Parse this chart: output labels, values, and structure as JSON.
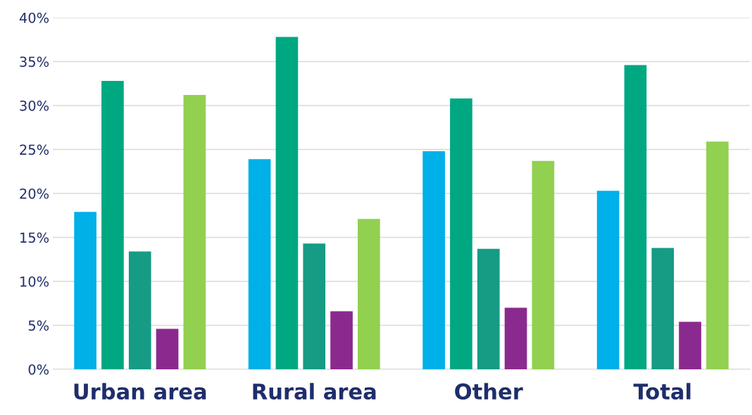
{
  "chart_data": {
    "type": "bar",
    "categories": [
      "Urban area",
      "Rural area",
      "Other",
      "Total"
    ],
    "series": [
      {
        "color": "#00b0e8",
        "values": [
          17.9,
          23.9,
          24.8,
          20.3
        ]
      },
      {
        "color": "#00a882",
        "values": [
          32.8,
          37.8,
          30.8,
          34.6
        ]
      },
      {
        "color": "#169b85",
        "values": [
          13.4,
          14.3,
          13.7,
          13.8
        ]
      },
      {
        "color": "#8b2a8e",
        "values": [
          4.6,
          6.6,
          7.0,
          5.4
        ]
      },
      {
        "color": "#92d050",
        "values": [
          31.2,
          17.1,
          23.7,
          25.9
        ]
      }
    ],
    "ylim": [
      0,
      40
    ],
    "yticks": [
      {
        "value": 0,
        "label": "0%"
      },
      {
        "value": 5,
        "label": "5%"
      },
      {
        "value": 10,
        "label": "10%"
      },
      {
        "value": 15,
        "label": "15%"
      },
      {
        "value": 20,
        "label": "20%"
      },
      {
        "value": 25,
        "label": "25%"
      },
      {
        "value": 30,
        "label": "30%"
      },
      {
        "value": 35,
        "label": "35%"
      },
      {
        "value": 40,
        "label": "40%"
      }
    ],
    "grid": "y"
  }
}
